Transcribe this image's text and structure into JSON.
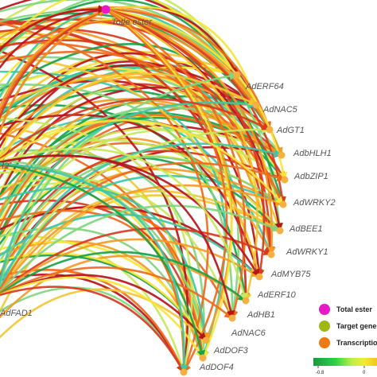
{
  "network": {
    "nodes": [
      {
        "id": "total_ester",
        "label": "Totle ester",
        "type": "total"
      },
      {
        "id": "erf64",
        "label": "AdERF64",
        "type": "tf"
      },
      {
        "id": "nac5",
        "label": "AdNAC5",
        "type": "tf"
      },
      {
        "id": "gt1",
        "label": "AdGT1",
        "type": "tf"
      },
      {
        "id": "bhlh1",
        "label": "AdbHLH1",
        "type": "tf"
      },
      {
        "id": "bzip1",
        "label": "AdbZIP1",
        "type": "tf"
      },
      {
        "id": "wrky2",
        "label": "AdWRKY2",
        "type": "tf"
      },
      {
        "id": "bee1",
        "label": "AdBEE1",
        "type": "tf"
      },
      {
        "id": "wrky1",
        "label": "AdWRKY1",
        "type": "tf"
      },
      {
        "id": "myb75",
        "label": "AdMYB75",
        "type": "tf"
      },
      {
        "id": "erf10",
        "label": "AdERF10",
        "type": "tf"
      },
      {
        "id": "hb1",
        "label": "AdHB1",
        "type": "tf"
      },
      {
        "id": "nac6",
        "label": "AdNAC6",
        "type": "tf"
      },
      {
        "id": "dof3",
        "label": "AdDOF3",
        "type": "tf"
      },
      {
        "id": "dof4",
        "label": "AdDOF4",
        "type": "tf"
      },
      {
        "id": "fad1",
        "label": "AdFAD1",
        "type": "target"
      },
      {
        "id": "gene2",
        "label": "...H2",
        "type": "target"
      }
    ],
    "edge_colors": [
      "#b8141c",
      "#d93a1f",
      "#ef6a1d",
      "#f59a24",
      "#f4c531",
      "#f7e53a",
      "#c9e85a",
      "#7fd67e",
      "#3ec7a8",
      "#16a34a"
    ]
  },
  "legend": {
    "items": [
      {
        "label": "Total ester",
        "color": "#e619c8"
      },
      {
        "label": "Target genes",
        "color": "#9fb813"
      },
      {
        "label": "Transcription-factor",
        "color": "#f07a12"
      }
    ],
    "colorbar": {
      "stops": [
        "#1a9a3a",
        "#2fd24a",
        "#b9f04a",
        "#f2ec2e",
        "#f7c22a"
      ],
      "ticks": [
        "-0.8",
        "0"
      ]
    }
  }
}
